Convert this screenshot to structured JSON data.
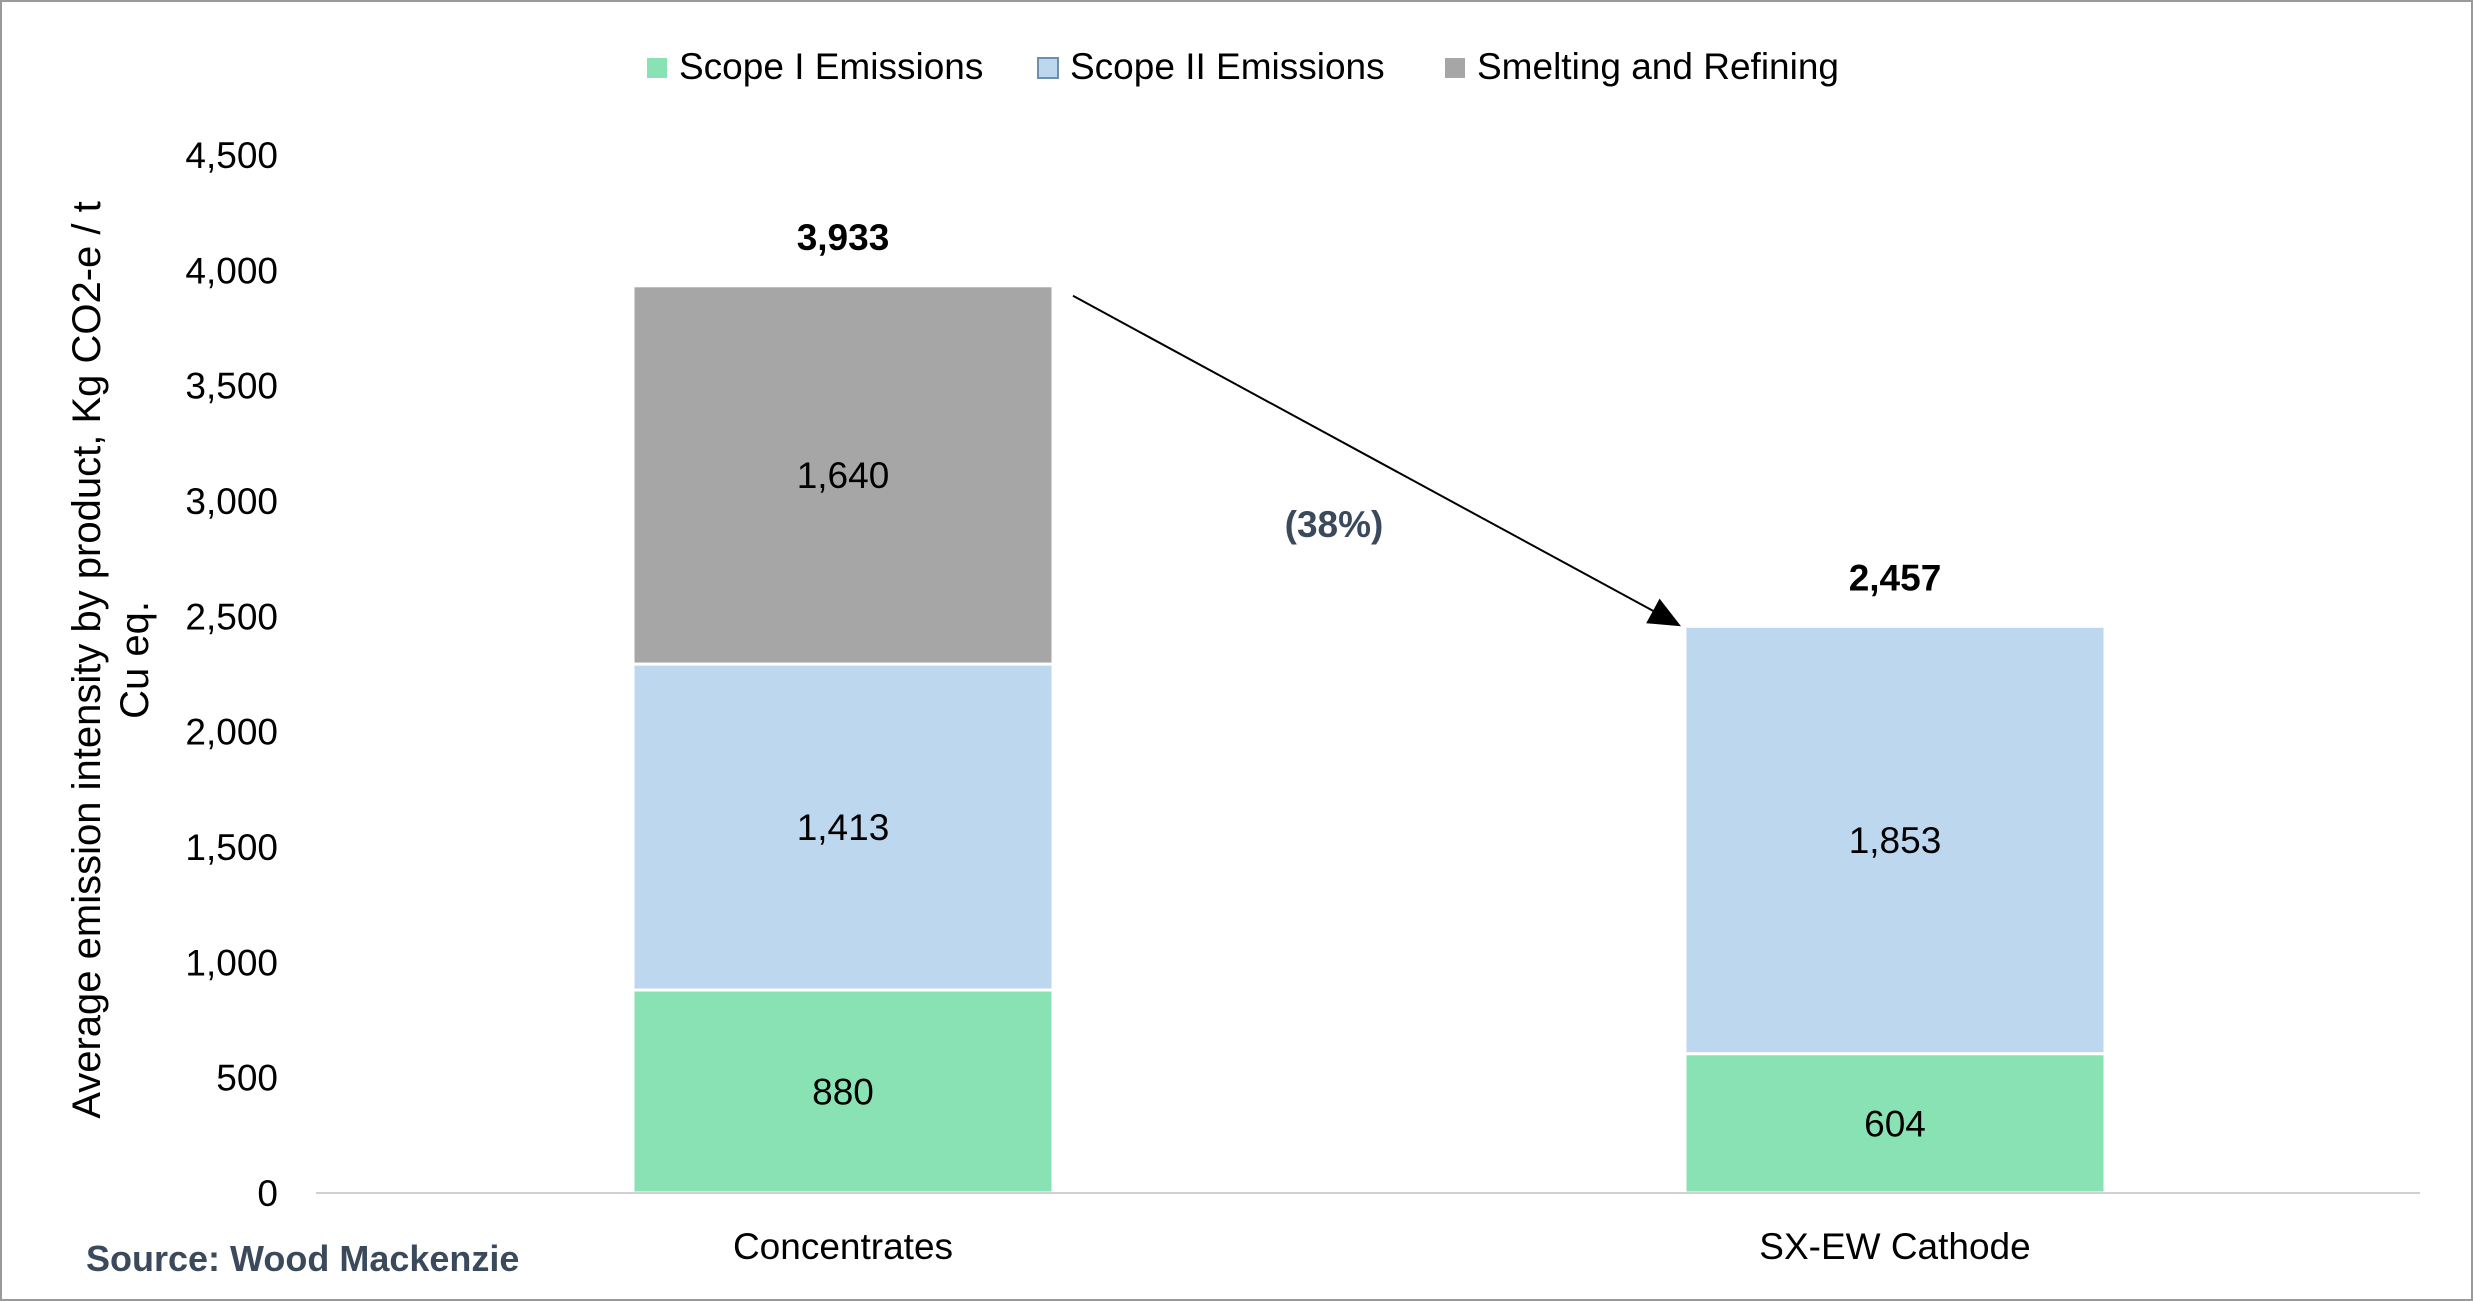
{
  "chart_data": {
    "type": "bar",
    "stacked": true,
    "categories": [
      "Concentrates",
      "SX-EW Cathode"
    ],
    "series": [
      {
        "name": "Scope I Emissions",
        "color": "#88e2b3",
        "values": [
          880,
          604
        ],
        "labels": [
          "880",
          "604"
        ]
      },
      {
        "name": "Scope II Emissions",
        "color": "#bdd7ee",
        "values": [
          1413,
          1853
        ],
        "labels": [
          "1,413",
          "1,853"
        ]
      },
      {
        "name": "Smelting and Refining",
        "color": "#a6a6a6",
        "values": [
          1640,
          0
        ],
        "labels": [
          "1,640",
          ""
        ]
      }
    ],
    "totals": [
      "3,933",
      "2,457"
    ],
    "total_values": [
      3933,
      2457
    ],
    "ylabel_lines": [
      "Average emission intensity by product, Kg CO2-e / t",
      "Cu eq."
    ],
    "ylim": [
      0,
      4500
    ],
    "yticks": [
      0,
      500,
      1000,
      1500,
      2000,
      2500,
      3000,
      3500,
      4000,
      4500
    ],
    "ytick_labels": [
      "0",
      "500",
      "1,000",
      "1,500",
      "2,000",
      "2,500",
      "3,000",
      "3,500",
      "4,000",
      "4,500"
    ],
    "legend_position": "top",
    "grid": false,
    "annotation": {
      "text": "(38%)",
      "from_category": 0,
      "to_category": 1
    }
  },
  "source": "Source: Wood Mackenzie"
}
